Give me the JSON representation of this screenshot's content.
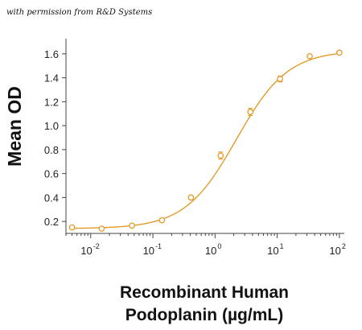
{
  "caption": "with permission from R&D Systems",
  "chart_data": {
    "type": "scatter",
    "title": "",
    "xlabel_line1": "Recombinant Human",
    "xlabel_line2": "Podoplanin (µg/mL)",
    "ylabel": "Mean OD",
    "x_scale": "log",
    "xlim": [
      0.004,
      120
    ],
    "ylim": [
      0.1,
      1.7
    ],
    "x_ticks": [
      {
        "value": 0.01,
        "base": "10",
        "exp": "-2"
      },
      {
        "value": 0.1,
        "base": "10",
        "exp": "-1"
      },
      {
        "value": 1,
        "base": "10",
        "exp": "0"
      },
      {
        "value": 10,
        "base": "10",
        "exp": "1"
      },
      {
        "value": 100,
        "base": "10",
        "exp": "2"
      }
    ],
    "y_ticks": [
      {
        "value": 0.2,
        "label": "0.2"
      },
      {
        "value": 0.4,
        "label": "0.4"
      },
      {
        "value": 0.6,
        "label": "0.6"
      },
      {
        "value": 0.8,
        "label": "0.8"
      },
      {
        "value": 1.0,
        "label": "1.0"
      },
      {
        "value": 1.2,
        "label": "1.2"
      },
      {
        "value": 1.4,
        "label": "1.4"
      },
      {
        "value": 1.6,
        "label": "1.6"
      }
    ],
    "color": "#e39b2c",
    "points": [
      {
        "x": 0.005,
        "y": 0.15,
        "err": 0.01
      },
      {
        "x": 0.015,
        "y": 0.14,
        "err": 0.01
      },
      {
        "x": 0.046,
        "y": 0.165,
        "err": 0.01
      },
      {
        "x": 0.14,
        "y": 0.21,
        "err": 0.01
      },
      {
        "x": 0.41,
        "y": 0.4,
        "err": 0.01
      },
      {
        "x": 1.23,
        "y": 0.75,
        "err": 0.03
      },
      {
        "x": 3.7,
        "y": 1.115,
        "err": 0.03
      },
      {
        "x": 11.1,
        "y": 1.39,
        "err": 0.025
      },
      {
        "x": 33.3,
        "y": 1.58,
        "err": 0.01
      },
      {
        "x": 100,
        "y": 1.61,
        "err": 0.01
      }
    ],
    "fit": {
      "model": "4PL",
      "bottom": 0.14,
      "top": 1.63,
      "ec50": 2.2,
      "hill": 1.05
    }
  }
}
